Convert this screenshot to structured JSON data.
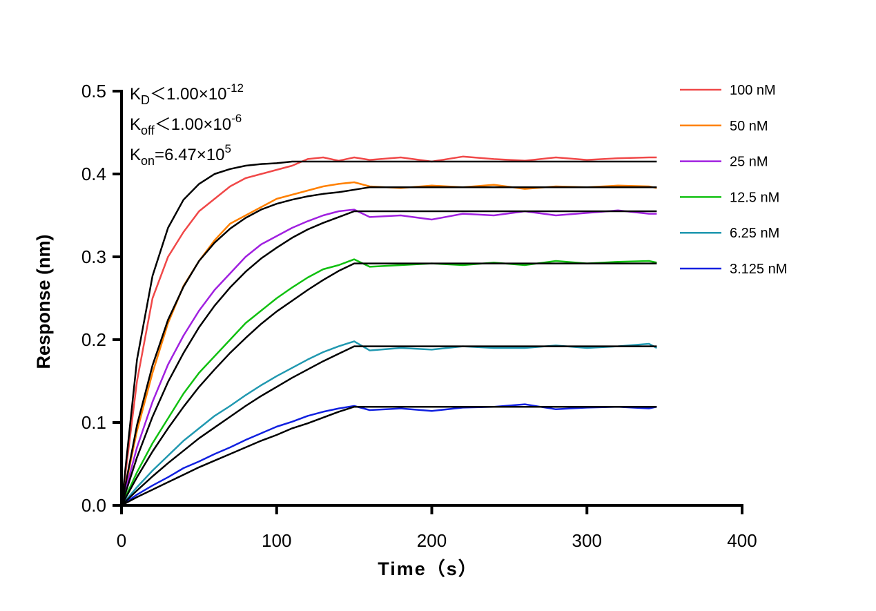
{
  "chart_data": {
    "type": "line",
    "xlabel": "Time（s）",
    "ylabel": "Response (nm)",
    "xlim": [
      0,
      400
    ],
    "ylim": [
      0,
      0.5
    ],
    "xticks": [
      0,
      100,
      200,
      300,
      400
    ],
    "yticks": [
      0.0,
      0.1,
      0.2,
      0.3,
      0.4,
      0.5
    ],
    "ytick_labels": [
      "0.0",
      "0.1",
      "0.2",
      "0.3",
      "0.4",
      "0.5"
    ],
    "grid": false,
    "legend_position": "top-right",
    "fit_color": "#000000",
    "annotations": [
      {
        "base": "K",
        "sub": "D",
        "rel": "＜",
        "value": "1.00×10",
        "exp": "-12"
      },
      {
        "base": "K",
        "sub": "off",
        "rel": "＜",
        "value": "1.00×10",
        "exp": "-6"
      },
      {
        "base": "K",
        "sub": "on",
        "rel": "=",
        "value": "6.47×10",
        "exp": "5"
      }
    ],
    "x": [
      0,
      10,
      20,
      30,
      40,
      50,
      60,
      70,
      80,
      90,
      100,
      110,
      120,
      130,
      140,
      150,
      160,
      180,
      200,
      220,
      240,
      260,
      280,
      300,
      320,
      340,
      345
    ],
    "series": [
      {
        "name": "100 nM",
        "color": "#f04848",
        "values": [
          0,
          0.15,
          0.25,
          0.3,
          0.33,
          0.355,
          0.37,
          0.385,
          0.395,
          0.4,
          0.405,
          0.41,
          0.418,
          0.42,
          0.416,
          0.42,
          0.417,
          0.42,
          0.415,
          0.421,
          0.418,
          0.416,
          0.42,
          0.417,
          0.419,
          0.42,
          0.42
        ],
        "fit": [
          0,
          0.176,
          0.277,
          0.335,
          0.369,
          0.388,
          0.4,
          0.406,
          0.41,
          0.412,
          0.413,
          0.415,
          0.415,
          0.415,
          0.415,
          0.415,
          0.415,
          0.415,
          0.415,
          0.415,
          0.415,
          0.415,
          0.415,
          0.415,
          0.415,
          0.415,
          0.415
        ]
      },
      {
        "name": "50 nM",
        "color": "#ff8000",
        "values": [
          0,
          0.09,
          0.16,
          0.22,
          0.265,
          0.295,
          0.32,
          0.34,
          0.35,
          0.36,
          0.37,
          0.375,
          0.38,
          0.385,
          0.388,
          0.39,
          0.385,
          0.383,
          0.386,
          0.384,
          0.387,
          0.382,
          0.385,
          0.384,
          0.386,
          0.385,
          0.383
        ],
        "fit": [
          0,
          0.097,
          0.169,
          0.224,
          0.264,
          0.295,
          0.317,
          0.334,
          0.347,
          0.357,
          0.364,
          0.369,
          0.373,
          0.376,
          0.378,
          0.381,
          0.384,
          0.384,
          0.384,
          0.384,
          0.384,
          0.384,
          0.384,
          0.384,
          0.384,
          0.384,
          0.384
        ]
      },
      {
        "name": "25 nM",
        "color": "#a020e0",
        "values": [
          0,
          0.07,
          0.125,
          0.17,
          0.205,
          0.235,
          0.26,
          0.28,
          0.3,
          0.315,
          0.325,
          0.335,
          0.343,
          0.35,
          0.355,
          0.357,
          0.348,
          0.35,
          0.345,
          0.352,
          0.35,
          0.355,
          0.35,
          0.353,
          0.356,
          0.352,
          0.352
        ],
        "fit": [
          0,
          0.058,
          0.107,
          0.149,
          0.184,
          0.215,
          0.241,
          0.263,
          0.282,
          0.298,
          0.311,
          0.323,
          0.333,
          0.341,
          0.348,
          0.355,
          0.355,
          0.355,
          0.355,
          0.355,
          0.355,
          0.355,
          0.355,
          0.355,
          0.355,
          0.355,
          0.355
        ]
      },
      {
        "name": "12.5 nM",
        "color": "#10c010",
        "values": [
          0,
          0.04,
          0.075,
          0.105,
          0.135,
          0.16,
          0.18,
          0.2,
          0.22,
          0.235,
          0.25,
          0.263,
          0.275,
          0.285,
          0.29,
          0.297,
          0.288,
          0.29,
          0.292,
          0.29,
          0.293,
          0.29,
          0.295,
          0.292,
          0.294,
          0.295,
          0.293
        ],
        "fit": [
          0,
          0.034,
          0.065,
          0.093,
          0.119,
          0.143,
          0.164,
          0.184,
          0.202,
          0.219,
          0.234,
          0.247,
          0.26,
          0.272,
          0.283,
          0.292,
          0.292,
          0.292,
          0.292,
          0.292,
          0.292,
          0.292,
          0.292,
          0.292,
          0.292,
          0.292,
          0.292
        ]
      },
      {
        "name": "6.25 nM",
        "color": "#2098b0",
        "values": [
          0,
          0.022,
          0.042,
          0.06,
          0.078,
          0.093,
          0.108,
          0.12,
          0.133,
          0.145,
          0.156,
          0.166,
          0.176,
          0.185,
          0.192,
          0.198,
          0.187,
          0.19,
          0.188,
          0.192,
          0.19,
          0.19,
          0.193,
          0.19,
          0.192,
          0.195,
          0.19
        ],
        "fit": [
          0,
          0.018,
          0.035,
          0.051,
          0.066,
          0.081,
          0.094,
          0.107,
          0.12,
          0.132,
          0.143,
          0.154,
          0.164,
          0.174,
          0.183,
          0.192,
          0.192,
          0.192,
          0.192,
          0.192,
          0.192,
          0.192,
          0.192,
          0.192,
          0.192,
          0.192,
          0.192
        ]
      },
      {
        "name": "3.125 nM",
        "color": "#1020e0",
        "values": [
          0,
          0.013,
          0.024,
          0.034,
          0.045,
          0.053,
          0.062,
          0.07,
          0.079,
          0.087,
          0.095,
          0.101,
          0.108,
          0.113,
          0.117,
          0.12,
          0.115,
          0.117,
          0.114,
          0.118,
          0.119,
          0.122,
          0.116,
          0.118,
          0.119,
          0.117,
          0.119
        ],
        "fit": [
          0,
          0.01,
          0.019,
          0.028,
          0.037,
          0.046,
          0.054,
          0.062,
          0.07,
          0.078,
          0.085,
          0.093,
          0.099,
          0.106,
          0.113,
          0.119,
          0.119,
          0.119,
          0.119,
          0.119,
          0.119,
          0.119,
          0.119,
          0.119,
          0.119,
          0.119,
          0.119
        ]
      }
    ]
  }
}
